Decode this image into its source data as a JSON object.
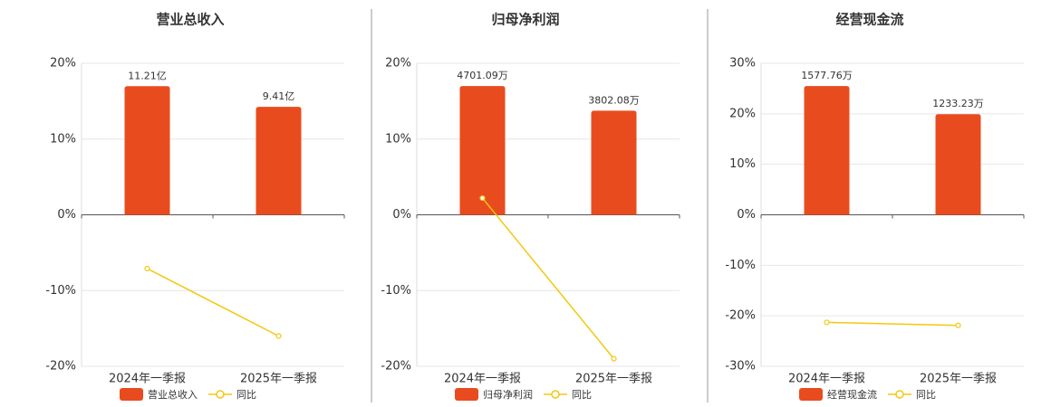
{
  "chart_data": [
    {
      "type": "bar",
      "title": "营业总收入",
      "categories": [
        "2024年一季报",
        "2025年一季报"
      ],
      "series": [
        {
          "name": "营业总收入",
          "color": "#e84c1e",
          "values": [
            11.21,
            9.41
          ],
          "value_labels": [
            "11.21亿",
            "9.41亿"
          ],
          "axis": "y2"
        },
        {
          "name": "同比",
          "color": "#f2c811",
          "type": "line",
          "values": [
            -7.1,
            -16.0
          ]
        }
      ],
      "ylim": [
        -20,
        20
      ],
      "yticks": [
        {
          "value": -20,
          "label": "-20%"
        },
        {
          "value": -10,
          "label": "-10%"
        },
        {
          "value": 0,
          "label": "0%"
        },
        {
          "value": 10,
          "label": "10%"
        },
        {
          "value": 20,
          "label": "20%"
        }
      ],
      "y2lim": [
        -13.2,
        13.2
      ],
      "grid": true,
      "legend": "bottom"
    },
    {
      "type": "bar",
      "title": "归母净利润",
      "categories": [
        "2024年一季报",
        "2025年一季报"
      ],
      "series": [
        {
          "name": "归母净利润",
          "color": "#e84c1e",
          "values": [
            4701.09,
            3802.08
          ],
          "value_labels": [
            "4701.09万",
            "3802.08万"
          ],
          "axis": "y2"
        },
        {
          "name": "同比",
          "color": "#f2c811",
          "type": "line",
          "values": [
            2.2,
            -19.0
          ]
        }
      ],
      "ylim": [
        -20,
        20
      ],
      "yticks": [
        {
          "value": -20,
          "label": "-20%"
        },
        {
          "value": -10,
          "label": "-10%"
        },
        {
          "value": 0,
          "label": "0%"
        },
        {
          "value": 10,
          "label": "10%"
        },
        {
          "value": 20,
          "label": "20%"
        }
      ],
      "y2lim": [
        -5530,
        5530
      ],
      "grid": true,
      "legend": "bottom"
    },
    {
      "type": "bar",
      "title": "经营现金流",
      "categories": [
        "2024年一季报",
        "2025年一季报"
      ],
      "series": [
        {
          "name": "经营现金流",
          "color": "#e84c1e",
          "values": [
            1577.76,
            1233.23
          ],
          "value_labels": [
            "1577.76万",
            "1233.23万"
          ],
          "axis": "y2"
        },
        {
          "name": "同比",
          "color": "#f2c811",
          "type": "line",
          "values": [
            -21.3,
            -21.9
          ]
        }
      ],
      "ylim": [
        -30,
        30
      ],
      "yticks": [
        {
          "value": -30,
          "label": "-30%"
        },
        {
          "value": -20,
          "label": "-20%"
        },
        {
          "value": -10,
          "label": "-10%"
        },
        {
          "value": 0,
          "label": "0%"
        },
        {
          "value": 10,
          "label": "10%"
        },
        {
          "value": 20,
          "label": "20%"
        },
        {
          "value": 30,
          "label": "30%"
        }
      ],
      "y2lim": [
        -1856,
        1856
      ],
      "grid": true,
      "legend": "bottom"
    }
  ]
}
